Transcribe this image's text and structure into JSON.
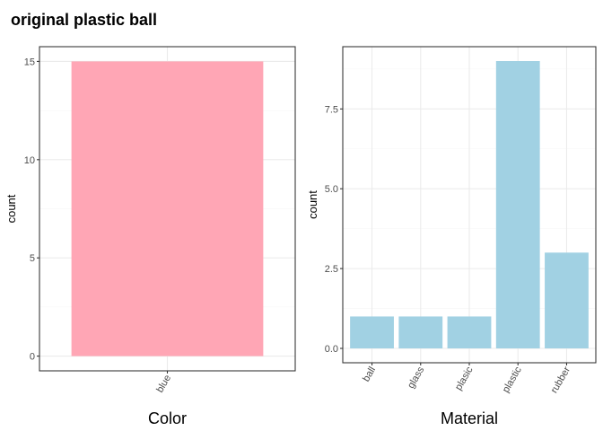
{
  "figure": {
    "title": "original plastic ball"
  },
  "chart_data": [
    {
      "type": "bar",
      "xlabel": "Color",
      "ylabel": "count",
      "categories": [
        "blue"
      ],
      "values": [
        15
      ],
      "ylim": [
        -0.75,
        15.75
      ],
      "yticks": [
        0,
        5,
        10,
        15
      ],
      "ytick_labels": [
        "0",
        "5",
        "10",
        "15"
      ],
      "bar_color": "#ffa6b5",
      "grid": true,
      "x_tick_rotation": -60
    },
    {
      "type": "bar",
      "xlabel": "Material",
      "ylabel": "count",
      "categories": [
        "ball",
        "glass",
        "plasic",
        "plastic",
        "rubber"
      ],
      "values": [
        1,
        1,
        1,
        9,
        3
      ],
      "ylim": [
        -0.45,
        9.45
      ],
      "yticks": [
        0,
        2.5,
        5,
        7.5
      ],
      "ytick_labels": [
        "0.0",
        "2.5",
        "5.0",
        "7.5"
      ],
      "bar_color": "#a1d1e3",
      "grid": true,
      "x_tick_rotation": -60
    }
  ]
}
